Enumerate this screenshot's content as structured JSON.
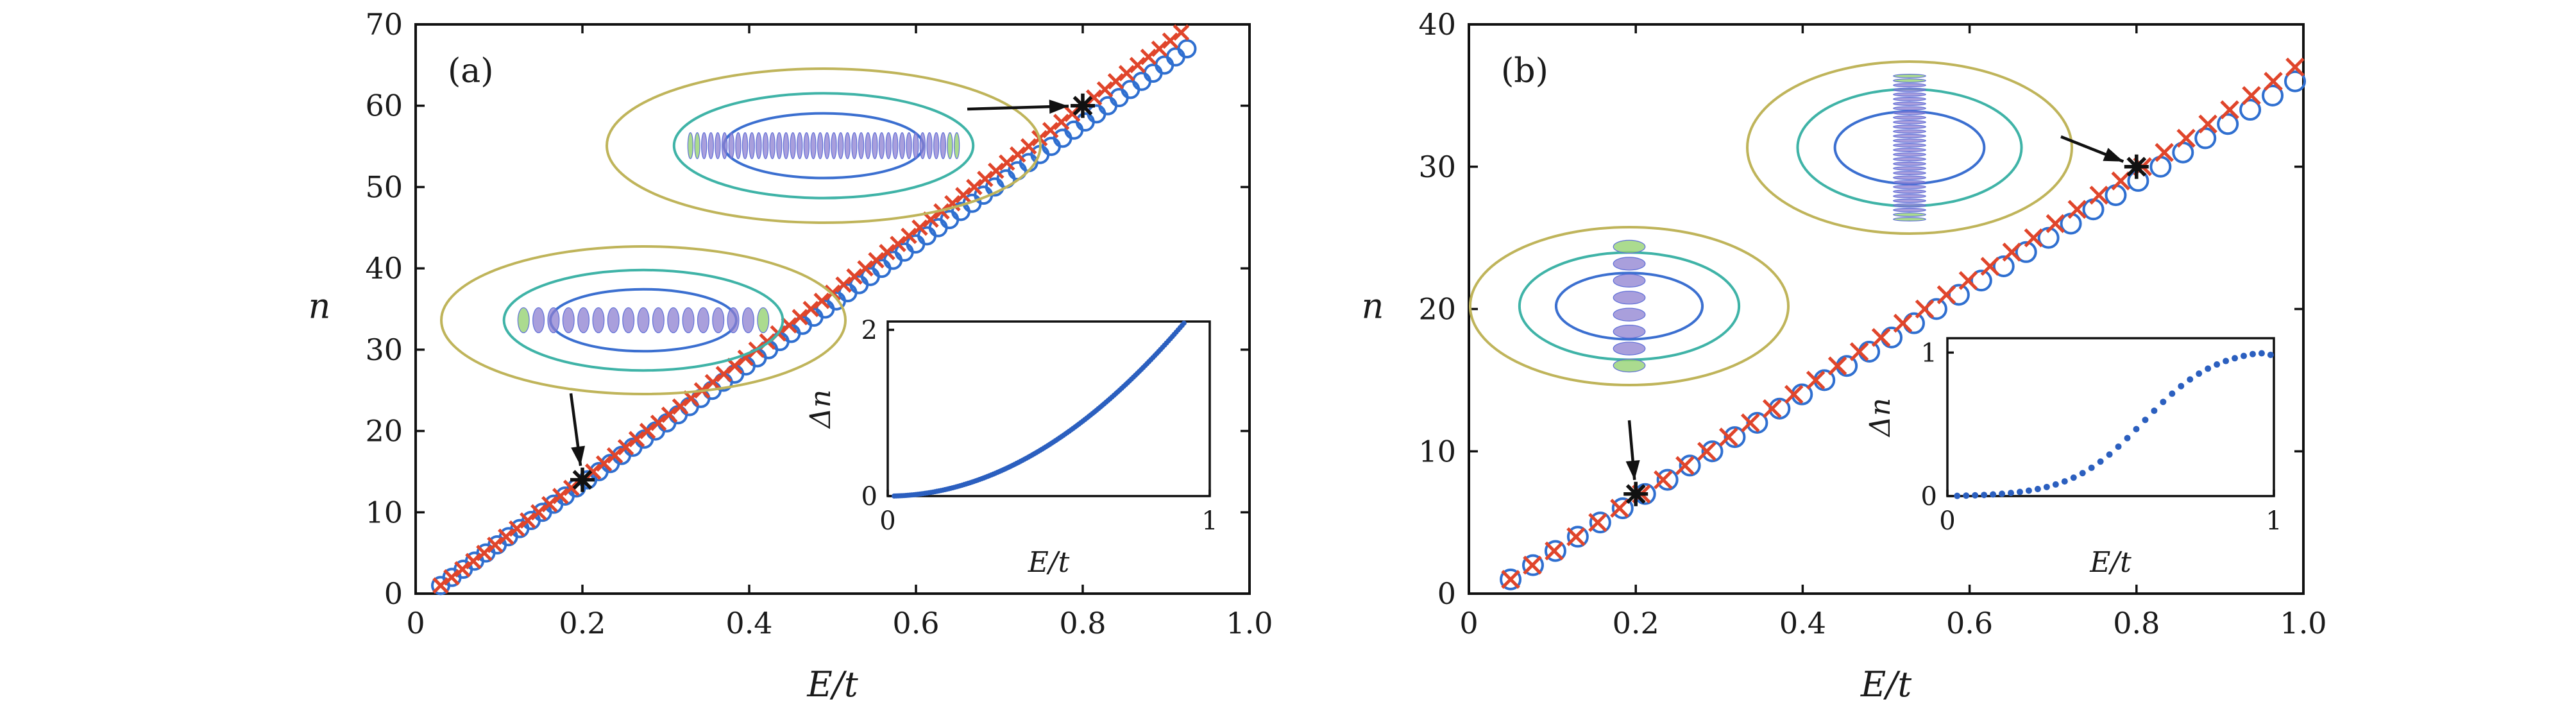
{
  "colors": {
    "open_circles": "#2f6fd0",
    "crosses": "#e0452b",
    "stars": "#111111",
    "inset_points": "#2b5fbf",
    "contour_outer": "#bfb45a",
    "contour_mid": "#3fb3a7",
    "contour_inner": "#3b6fd0",
    "wavefunction": "#8c7fd0"
  },
  "chart_data": [
    {
      "type": "scatter",
      "panel_label": "(a)",
      "xlabel": "E/t",
      "ylabel": "n",
      "xlim": [
        0,
        1.0
      ],
      "ylim": [
        0,
        70
      ],
      "xticks": [
        "0",
        "0.2",
        "0.4",
        "0.6",
        "0.8",
        "1.0"
      ],
      "yticks": [
        "0",
        "10",
        "20",
        "30",
        "40",
        "50",
        "60",
        "70"
      ],
      "series": [
        {
          "marker": "open-circle",
          "x_start": 0.03,
          "x_end": 0.925,
          "count": 67,
          "n_start": 1,
          "n_step": 1
        },
        {
          "marker": "cross",
          "x_start": 0.03,
          "x_end": 0.918,
          "count": 69,
          "n_start": 1,
          "n_step": 1
        }
      ],
      "highlights": [
        {
          "marker": "star",
          "x": 0.2,
          "y": 14
        },
        {
          "marker": "star",
          "x": 0.8,
          "y": 60
        }
      ],
      "mode_insets": [
        {
          "orientation": "horizontal",
          "points_to": {
            "x": 0.2,
            "y": 14
          },
          "lobes": 17
        },
        {
          "orientation": "horizontal",
          "points_to": {
            "x": 0.8,
            "y": 60
          },
          "lobes": 40
        }
      ],
      "inset": {
        "type": "scatter",
        "xlabel": "E/t",
        "ylabel": "Δn",
        "xlim": [
          0,
          1
        ],
        "ylim": [
          0,
          2.1
        ],
        "xticks": [
          "0",
          "1"
        ],
        "yticks": [
          "0",
          "2"
        ],
        "x_start": 0.02,
        "x_end": 0.92,
        "count": 150,
        "curve": "Δn ≈ 2.08·((E/t)/0.92)^2"
      }
    },
    {
      "type": "scatter",
      "panel_label": "(b)",
      "xlabel": "E/t",
      "ylabel": "n",
      "xlim": [
        0,
        1.0
      ],
      "ylim": [
        0,
        40
      ],
      "xticks": [
        "0",
        "0.2",
        "0.4",
        "0.6",
        "0.8",
        "1.0"
      ],
      "yticks": [
        "0",
        "10",
        "20",
        "30",
        "40"
      ],
      "series": [
        {
          "marker": "open-circle",
          "x_start": 0.05,
          "x_end": 0.99,
          "count": 36,
          "n_start": 1,
          "n_step": 1
        },
        {
          "marker": "cross",
          "x_start": 0.05,
          "x_end": 0.99,
          "count": 37,
          "n_start": 1,
          "n_step": 1
        }
      ],
      "highlights": [
        {
          "marker": "star",
          "x": 0.2,
          "y": 7
        },
        {
          "marker": "star",
          "x": 0.8,
          "y": 30
        }
      ],
      "mode_insets": [
        {
          "orientation": "vertical",
          "points_to": {
            "x": 0.2,
            "y": 7
          },
          "lobes": 8
        },
        {
          "orientation": "vertical",
          "points_to": {
            "x": 0.8,
            "y": 30
          },
          "lobes": 32
        }
      ],
      "inset": {
        "type": "scatter",
        "xlabel": "E/t",
        "ylabel": "Δn",
        "xlim": [
          0,
          1
        ],
        "ylim": [
          0,
          1.1
        ],
        "xticks": [
          "0",
          "1"
        ],
        "yticks": [
          "0",
          "1"
        ],
        "x_start": 0.03,
        "x_end": 0.99,
        "count": 36,
        "curve": "logistic, rising to ≈1.0 near E/t = 0.95"
      }
    }
  ]
}
